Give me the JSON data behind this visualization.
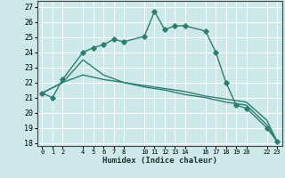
{
  "xlabel": "Humidex (Indice chaleur)",
  "bg_color": "#cce8e8",
  "grid_color": "#ffffff",
  "line_color": "#2e7d6e",
  "xlim": [
    -0.5,
    23.5
  ],
  "ylim": [
    17.8,
    27.4
  ],
  "yticks": [
    18,
    19,
    20,
    21,
    22,
    23,
    24,
    25,
    26,
    27
  ],
  "xtick_positions": [
    0,
    1,
    2,
    4,
    5,
    6,
    7,
    8,
    10,
    11,
    12,
    13,
    14,
    16,
    17,
    18,
    19,
    20,
    22,
    23
  ],
  "xtick_labels": [
    "0",
    "1",
    "2",
    "4",
    "5",
    "6",
    "7",
    "8",
    "10",
    "11",
    "12",
    "13",
    "14",
    "16",
    "17",
    "18",
    "19",
    "20",
    "22",
    "23"
  ],
  "line1_x": [
    0,
    1,
    2,
    4,
    5,
    6,
    7,
    8,
    10,
    11,
    12,
    13,
    14,
    16,
    17,
    18,
    19,
    20,
    22,
    23
  ],
  "line1_y": [
    21.3,
    21.0,
    22.2,
    24.0,
    24.3,
    24.5,
    24.85,
    24.7,
    25.05,
    26.7,
    25.5,
    25.75,
    25.75,
    25.4,
    24.0,
    22.0,
    20.5,
    20.3,
    19.0,
    18.1
  ],
  "line2_x": [
    0,
    2,
    4,
    6,
    8,
    10,
    12,
    14,
    16,
    18,
    20,
    22,
    23
  ],
  "line2_y": [
    21.3,
    22.0,
    23.5,
    22.5,
    22.0,
    21.7,
    21.5,
    21.2,
    21.0,
    20.7,
    20.5,
    19.2,
    18.1
  ],
  "line3_x": [
    0,
    2,
    4,
    6,
    8,
    10,
    12,
    14,
    16,
    18,
    20,
    22,
    23
  ],
  "line3_y": [
    21.3,
    22.0,
    22.5,
    22.2,
    22.0,
    21.8,
    21.6,
    21.4,
    21.1,
    20.9,
    20.7,
    19.5,
    18.1
  ]
}
